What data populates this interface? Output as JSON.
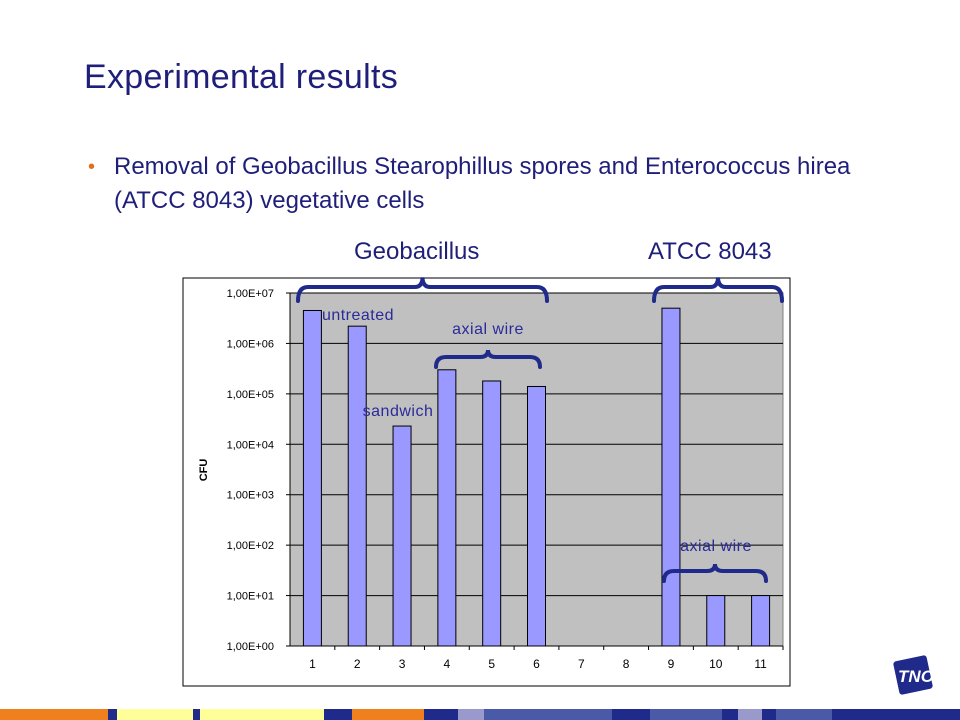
{
  "slide": {
    "title": "Experimental results",
    "bullet": "Removal of Geobacillus Stearophillus spores and Enterococcus hirea (ATCC 8043) vegetative cells",
    "groups": {
      "geobacillus": "Geobacillus",
      "atcc": "ATCC 8043"
    },
    "logo_text": "TNO"
  },
  "colors": {
    "title": "#1f1f7a",
    "bullet": "#e07020",
    "plot_bg": "#c0c0c0",
    "bar": "#9999ff",
    "brace": "#1f2a8a",
    "annotation": "#2a2a9a"
  },
  "chart_data": {
    "type": "bar",
    "scale": "log10",
    "categories": [
      "1",
      "2",
      "3",
      "4",
      "5",
      "6",
      "7",
      "8",
      "9",
      "10",
      "11"
    ],
    "values": [
      4500000,
      2200000,
      23000,
      300000,
      180000,
      140000,
      null,
      null,
      5000000,
      10,
      10
    ],
    "ylabel": "CFU",
    "ylim": [
      1,
      10000000
    ],
    "yticks": [
      "1,00E+00",
      "1,00E+01",
      "1,00E+02",
      "1,00E+03",
      "1,00E+04",
      "1,00E+05",
      "1,00E+06",
      "1,00E+07"
    ],
    "grid": true,
    "annotations": [
      {
        "text": "untreated",
        "category": 1
      },
      {
        "text": "sandwich",
        "category": 3
      },
      {
        "text": "axial wire",
        "category": 5
      },
      {
        "text": "axial wire",
        "category": 10
      }
    ]
  }
}
